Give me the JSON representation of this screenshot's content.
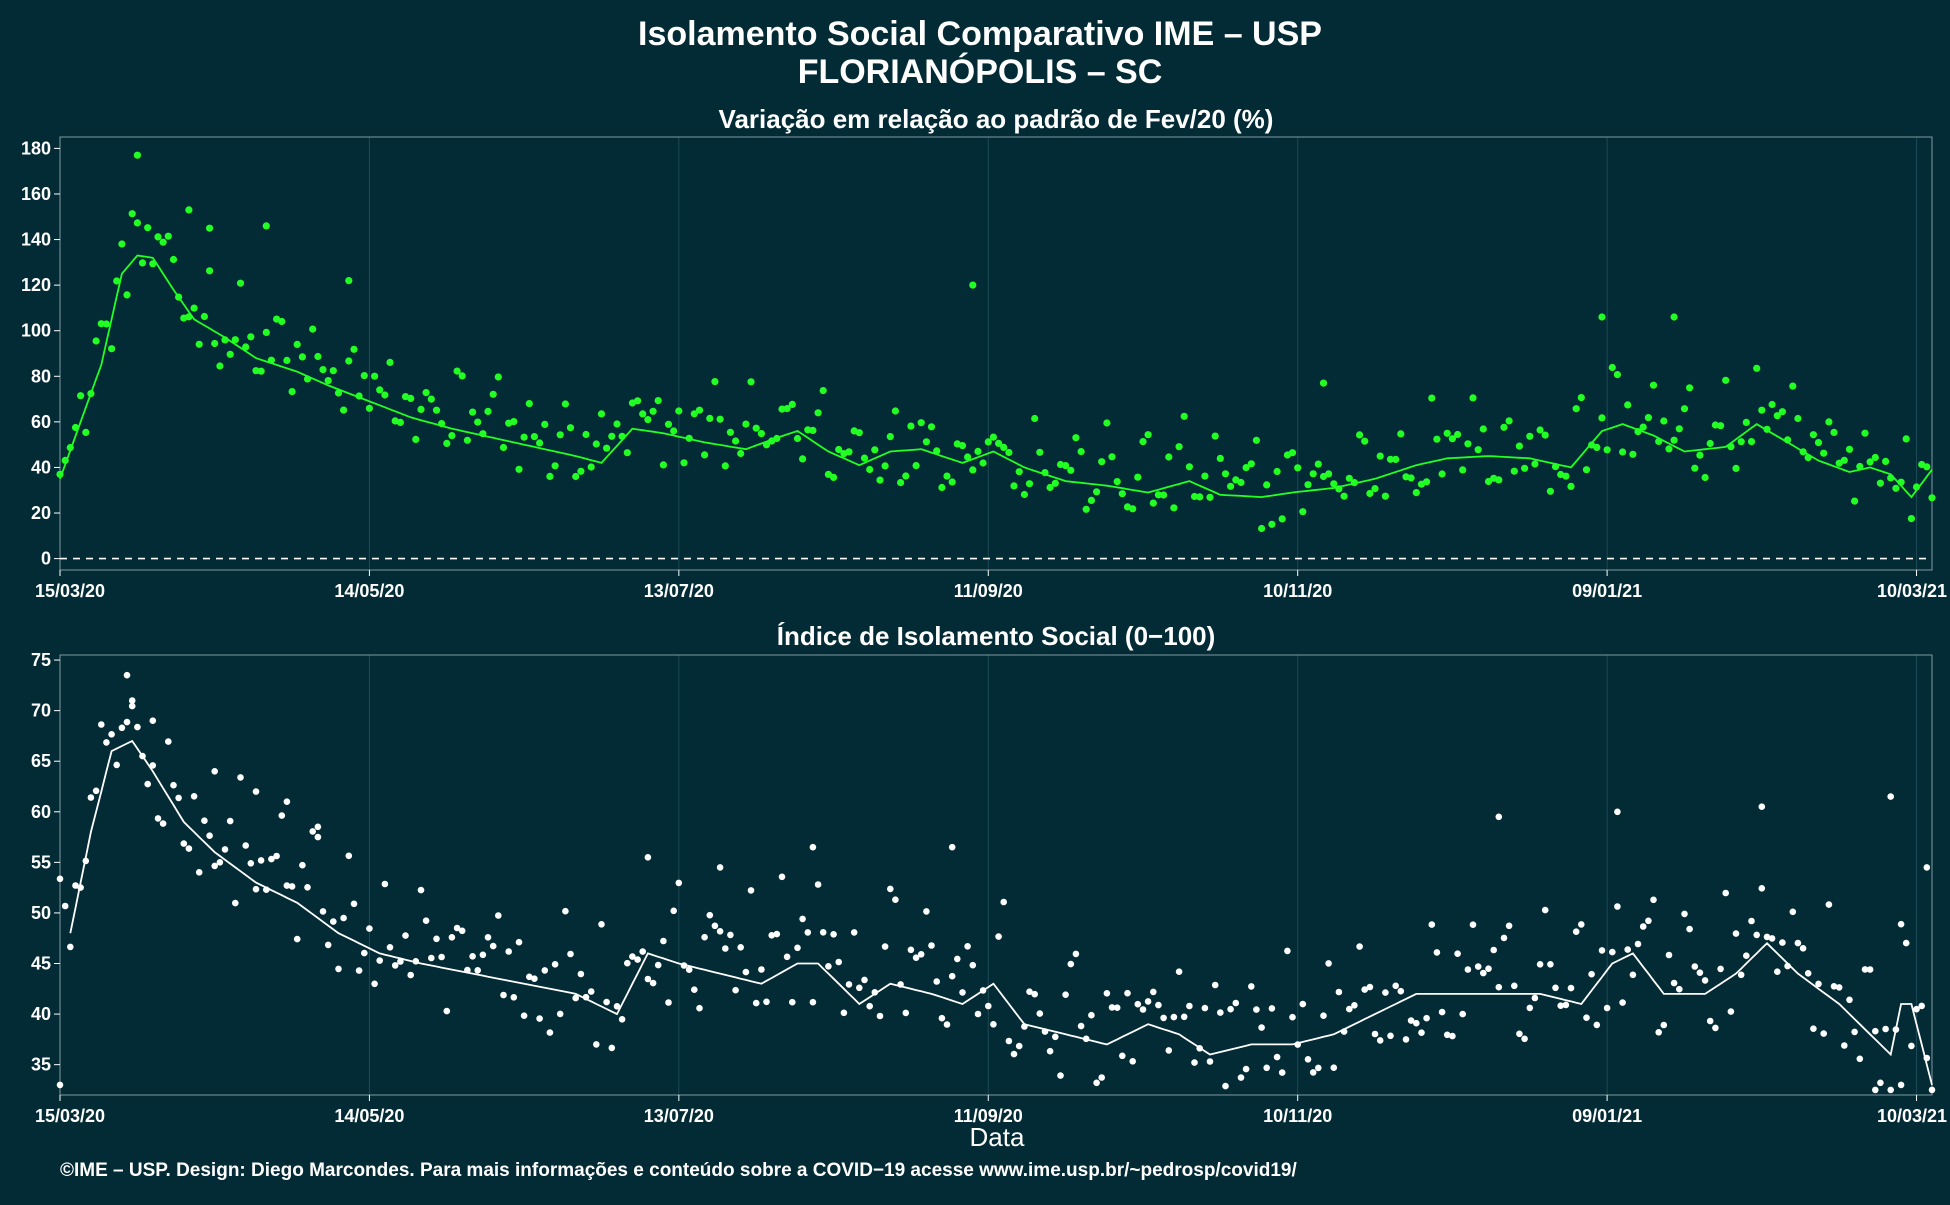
{
  "title_line1": "Isolamento Social Comparativo IME – USP",
  "title_line2": "FLORIANÓPOLIS – SC",
  "x_axis_title": "Data",
  "caption": "©IME – USP. Design: Diego Marcondes. Para mais informações e conteúdo sobre a COVID−19 acesse www.ime.usp.br/~pedrosp/covid19/",
  "colors": {
    "background": "#032b35",
    "top_series": "#22ff22",
    "bottom_series": "#ffffff",
    "grid": "#1b4a55"
  },
  "chart_data": [
    {
      "type": "scatter",
      "title": "Variação em relação ao padrão de Fev/20 (%)",
      "x_ticks": [
        "15/03/20",
        "14/05/20",
        "13/07/20",
        "11/09/20",
        "10/11/20",
        "09/01/21",
        "10/03/21"
      ],
      "y_ticks": [
        "0",
        "20",
        "40",
        "60",
        "80",
        "100",
        "120",
        "140",
        "160",
        "180"
      ],
      "ylim": [
        -5,
        185
      ],
      "x_range": [
        "2020-03-15",
        "2021-03-13"
      ],
      "reference_line": 0,
      "grid": true,
      "smoothed_line_anchors": [
        [
          "2020-03-15",
          35
        ],
        [
          "2020-03-19",
          60
        ],
        [
          "2020-03-23",
          85
        ],
        [
          "2020-03-27",
          125
        ],
        [
          "2020-03-30",
          133
        ],
        [
          "2020-04-02",
          132
        ],
        [
          "2020-04-06",
          118
        ],
        [
          "2020-04-10",
          105
        ],
        [
          "2020-04-16",
          97
        ],
        [
          "2020-04-22",
          88
        ],
        [
          "2020-04-30",
          82
        ],
        [
          "2020-05-06",
          76
        ],
        [
          "2020-05-14",
          69
        ],
        [
          "2020-05-22",
          62
        ],
        [
          "2020-05-30",
          57
        ],
        [
          "2020-06-07",
          53
        ],
        [
          "2020-06-15",
          49
        ],
        [
          "2020-06-23",
          45
        ],
        [
          "2020-06-28",
          42
        ],
        [
          "2020-07-04",
          57
        ],
        [
          "2020-07-10",
          55
        ],
        [
          "2020-07-18",
          51
        ],
        [
          "2020-07-26",
          48
        ],
        [
          "2020-08-01",
          53
        ],
        [
          "2020-08-05",
          56
        ],
        [
          "2020-08-11",
          47
        ],
        [
          "2020-08-17",
          41
        ],
        [
          "2020-08-23",
          47
        ],
        [
          "2020-08-29",
          48
        ],
        [
          "2020-09-06",
          42
        ],
        [
          "2020-09-12",
          47
        ],
        [
          "2020-09-18",
          40
        ],
        [
          "2020-09-26",
          34
        ],
        [
          "2020-10-04",
          32
        ],
        [
          "2020-10-12",
          29
        ],
        [
          "2020-10-20",
          34
        ],
        [
          "2020-10-26",
          28
        ],
        [
          "2020-11-03",
          27
        ],
        [
          "2020-11-09",
          29
        ],
        [
          "2020-11-17",
          31
        ],
        [
          "2020-11-25",
          35
        ],
        [
          "2020-12-03",
          41
        ],
        [
          "2020-12-09",
          44
        ],
        [
          "2020-12-17",
          45
        ],
        [
          "2020-12-25",
          44
        ],
        [
          "2021-01-02",
          40
        ],
        [
          "2021-01-08",
          56
        ],
        [
          "2021-01-12",
          59
        ],
        [
          "2021-01-18",
          54
        ],
        [
          "2021-01-24",
          47
        ],
        [
          "2021-02-01",
          49
        ],
        [
          "2021-02-07",
          59
        ],
        [
          "2021-02-13",
          51
        ],
        [
          "2021-02-19",
          43
        ],
        [
          "2021-02-25",
          38
        ],
        [
          "2021-03-01",
          40
        ],
        [
          "2021-03-05",
          37
        ],
        [
          "2021-03-09",
          27
        ],
        [
          "2021-03-13",
          39
        ]
      ],
      "highlight_points": [
        [
          "2020-03-30",
          177
        ],
        [
          "2020-04-09",
          153
        ],
        [
          "2020-04-13",
          145
        ],
        [
          "2020-04-24",
          146
        ],
        [
          "2020-05-10",
          122
        ],
        [
          "2020-09-08",
          120
        ],
        [
          "2020-11-15",
          77
        ],
        [
          "2021-01-08",
          106
        ],
        [
          "2021-01-22",
          106
        ]
      ],
      "scatter_spread": 14
    },
    {
      "type": "scatter",
      "title": "Índice de Isolamento Social (0−100)",
      "x_ticks": [
        "15/03/20",
        "14/05/20",
        "13/07/20",
        "11/09/20",
        "10/11/20",
        "09/01/21",
        "10/03/21"
      ],
      "y_ticks": [
        "35",
        "40",
        "45",
        "50",
        "55",
        "60",
        "65",
        "70",
        "75"
      ],
      "ylim": [
        32,
        75.5
      ],
      "x_range": [
        "2020-03-15",
        "2021-03-13"
      ],
      "grid": true,
      "smoothed_line_anchors": [
        [
          "2020-03-17",
          48
        ],
        [
          "2020-03-21",
          58
        ],
        [
          "2020-03-25",
          66
        ],
        [
          "2020-03-29",
          67
        ],
        [
          "2020-04-02",
          64
        ],
        [
          "2020-04-08",
          59
        ],
        [
          "2020-04-14",
          56
        ],
        [
          "2020-04-22",
          53
        ],
        [
          "2020-04-30",
          51
        ],
        [
          "2020-05-08",
          48
        ],
        [
          "2020-05-16",
          46
        ],
        [
          "2020-05-24",
          45
        ],
        [
          "2020-06-03",
          44
        ],
        [
          "2020-06-13",
          43
        ],
        [
          "2020-06-23",
          42
        ],
        [
          "2020-07-01",
          40
        ],
        [
          "2020-07-07",
          46
        ],
        [
          "2020-07-13",
          45
        ],
        [
          "2020-07-21",
          44
        ],
        [
          "2020-07-29",
          43
        ],
        [
          "2020-08-05",
          45
        ],
        [
          "2020-08-09",
          45
        ],
        [
          "2020-08-17",
          41
        ],
        [
          "2020-08-23",
          43
        ],
        [
          "2020-08-31",
          42
        ],
        [
          "2020-09-06",
          41
        ],
        [
          "2020-09-12",
          43
        ],
        [
          "2020-09-18",
          39
        ],
        [
          "2020-09-26",
          38
        ],
        [
          "2020-10-04",
          37
        ],
        [
          "2020-10-12",
          39
        ],
        [
          "2020-10-18",
          38
        ],
        [
          "2020-10-24",
          36
        ],
        [
          "2020-11-01",
          37
        ],
        [
          "2020-11-09",
          37
        ],
        [
          "2020-11-17",
          38
        ],
        [
          "2020-11-25",
          40
        ],
        [
          "2020-12-03",
          42
        ],
        [
          "2020-12-11",
          42
        ],
        [
          "2020-12-19",
          42
        ],
        [
          "2020-12-27",
          42
        ],
        [
          "2021-01-04",
          41
        ],
        [
          "2021-01-10",
          45
        ],
        [
          "2021-01-14",
          46
        ],
        [
          "2021-01-20",
          42
        ],
        [
          "2021-01-28",
          42
        ],
        [
          "2021-02-03",
          44
        ],
        [
          "2021-02-09",
          47
        ],
        [
          "2021-02-15",
          44
        ],
        [
          "2021-02-23",
          41
        ],
        [
          "2021-03-01",
          38
        ],
        [
          "2021-03-05",
          36
        ],
        [
          "2021-03-07",
          41
        ],
        [
          "2021-03-09",
          41
        ],
        [
          "2021-03-13",
          33
        ]
      ],
      "highlight_points": [
        [
          "2020-03-28",
          73.5
        ],
        [
          "2020-03-29",
          71
        ],
        [
          "2020-04-02",
          69
        ],
        [
          "2020-04-14",
          64
        ],
        [
          "2020-04-22",
          62
        ],
        [
          "2020-04-28",
          61
        ],
        [
          "2020-05-04",
          57.5
        ],
        [
          "2020-07-07",
          55.5
        ],
        [
          "2020-07-21",
          54.5
        ],
        [
          "2020-08-08",
          56.5
        ],
        [
          "2020-09-04",
          56.5
        ],
        [
          "2020-12-19",
          59.5
        ],
        [
          "2021-01-11",
          60
        ],
        [
          "2021-02-08",
          60.5
        ],
        [
          "2021-03-05",
          61.5
        ],
        [
          "2021-03-12",
          54.5
        ],
        [
          "2021-03-02",
          32.5
        ],
        [
          "2021-03-07",
          33
        ],
        [
          "2020-03-15",
          33
        ]
      ],
      "scatter_spread": 4.5
    }
  ]
}
